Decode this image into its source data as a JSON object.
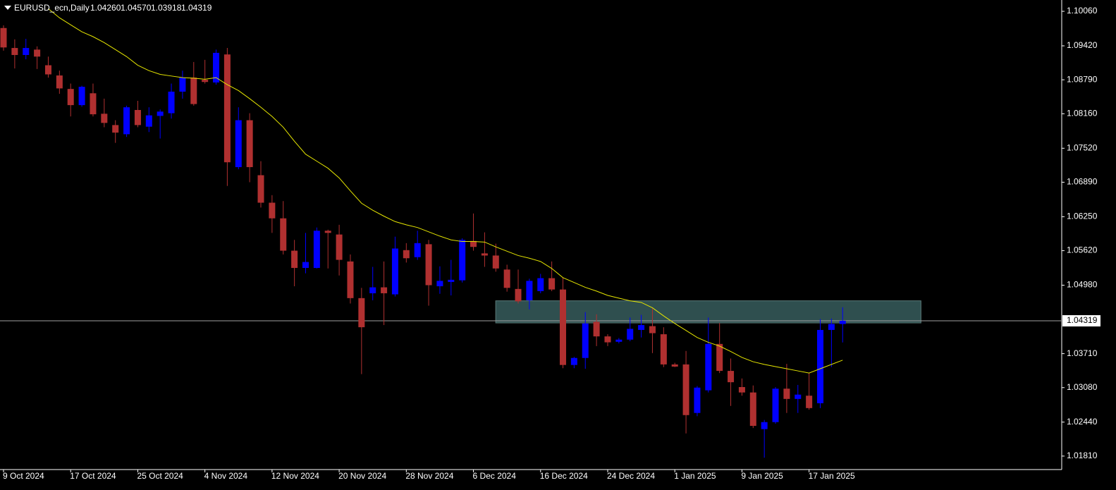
{
  "chart_data": {
    "type": "candlestick",
    "title": "EURUSD_ecn,Daily",
    "quote": [
      "1.04260",
      "1.04570",
      "1.03918",
      "1.04319"
    ],
    "categories": [
      "9 Oct 2024",
      null,
      null,
      null,
      null,
      null,
      "17 Oct 2024",
      null,
      null,
      null,
      null,
      null,
      "25 Oct 2024",
      null,
      null,
      null,
      null,
      null,
      "4 Nov 2024",
      null,
      null,
      null,
      null,
      null,
      "12 Nov 2024",
      null,
      null,
      null,
      null,
      null,
      "20 Nov 2024",
      null,
      null,
      null,
      null,
      null,
      "28 Nov 2024",
      null,
      null,
      null,
      null,
      null,
      "6 Dec 2024",
      null,
      null,
      null,
      null,
      null,
      "16 Dec 2024",
      null,
      null,
      null,
      null,
      null,
      "24 Dec 2024",
      null,
      null,
      null,
      null,
      null,
      "1 Jan 2025",
      null,
      null,
      null,
      null,
      null,
      "9 Jan 2025",
      null,
      null,
      null,
      null,
      null,
      "17 Jan 2025",
      null,
      null,
      null
    ],
    "open": [
      1.0975,
      1.0938,
      1.0925,
      1.0935,
      1.0906,
      1.0887,
      1.0862,
      1.0832,
      1.0854,
      1.0816,
      1.0795,
      1.0778,
      1.0823,
      1.0792,
      1.0812,
      1.0817,
      1.0857,
      1.0883,
      1.0879,
      1.0874,
      1.0926,
      1.0717,
      1.0804,
      1.0702,
      1.0651,
      1.0622,
      1.0562,
      1.053,
      1.053,
      1.0599,
      1.0592,
      1.0542,
      1.0474,
      1.0483,
      1.0494,
      1.0481,
      1.0563,
      1.055,
      1.0574,
      1.0496,
      1.0504,
      1.0507,
      1.058,
      1.0557,
      1.0553,
      1.0527,
      1.0491,
      1.047,
      1.0487,
      1.0511,
      1.049,
      1.035,
      1.0363,
      1.043,
      1.0403,
      1.0393,
      1.0397,
      1.0415,
      1.0422,
      1.0407,
      1.0351,
      1.0351,
      1.0261,
      1.0303,
      1.0389,
      1.0339,
      1.0309,
      1.0299,
      1.0231,
      1.0244,
      1.0306,
      1.0287,
      1.0293,
      1.0279,
      1.0415,
      1.0426
    ],
    "high": [
      1.098,
      1.0954,
      1.0955,
      1.0941,
      1.0922,
      1.0896,
      1.0872,
      1.0868,
      1.0872,
      1.0844,
      1.0804,
      1.0831,
      1.084,
      1.0828,
      1.0824,
      1.0872,
      1.0896,
      1.0912,
      1.0916,
      1.0935,
      1.0938,
      1.0828,
      1.0817,
      1.0728,
      1.0665,
      1.0654,
      1.0582,
      1.0595,
      1.0605,
      1.0601,
      1.061,
      1.0555,
      1.0493,
      1.0532,
      1.0542,
      1.0588,
      1.0576,
      1.0599,
      1.0582,
      1.0533,
      1.0545,
      1.0585,
      1.0631,
      1.0596,
      1.0575,
      1.0536,
      1.0527,
      1.051,
      1.0519,
      1.0542,
      1.0512,
      1.0365,
      1.0448,
      1.0444,
      1.0407,
      1.04,
      1.0438,
      1.0443,
      1.0455,
      1.042,
      1.0354,
      1.0376,
      1.0311,
      1.0438,
      1.0428,
      1.0362,
      1.0325,
      1.0312,
      1.0248,
      1.0309,
      1.0352,
      1.0313,
      1.0335,
      1.0435,
      1.0436,
      1.0457
    ],
    "low": [
      1.0933,
      1.09,
      1.0917,
      1.0899,
      1.0883,
      1.0853,
      1.0811,
      1.0829,
      1.0811,
      1.0791,
      1.0762,
      1.0773,
      1.0791,
      1.0782,
      1.077,
      1.0807,
      1.0844,
      1.0831,
      1.0872,
      1.087,
      1.0682,
      1.0713,
      1.0689,
      1.0642,
      1.0595,
      1.0555,
      1.0496,
      1.052,
      1.0529,
      1.0529,
      1.0516,
      1.0464,
      1.0333,
      1.047,
      1.0424,
      1.0477,
      1.054,
      1.0545,
      1.046,
      1.0482,
      1.0479,
      1.0503,
      1.0562,
      1.0532,
      1.0523,
      1.0486,
      1.0464,
      1.0453,
      1.0483,
      1.0487,
      1.0344,
      1.0344,
      1.0343,
      1.0385,
      1.0385,
      1.039,
      1.0394,
      1.0401,
      1.0372,
      1.0346,
      1.0346,
      1.0223,
      1.0255,
      1.0299,
      1.0335,
      1.0274,
      1.0293,
      1.0233,
      1.0178,
      1.0241,
      1.0261,
      1.0261,
      1.0267,
      1.027,
      1.0346,
      1.03918
    ],
    "close": [
      1.0939,
      1.0925,
      1.0938,
      1.0922,
      1.0889,
      1.0863,
      1.0832,
      1.0866,
      1.0815,
      1.0799,
      1.0781,
      1.0828,
      1.0795,
      1.0813,
      1.082,
      1.0857,
      1.0883,
      1.0834,
      1.0875,
      1.0929,
      1.0726,
      1.0804,
      1.0717,
      1.0651,
      1.0622,
      1.0562,
      1.053,
      1.0541,
      1.0599,
      1.0595,
      1.0545,
      1.0474,
      1.042,
      1.0494,
      1.0483,
      1.0566,
      1.0548,
      1.0576,
      1.0498,
      1.0506,
      1.0508,
      1.0582,
      1.0569,
      1.0553,
      1.0529,
      1.0493,
      1.0468,
      1.0506,
      1.0511,
      1.049,
      1.035,
      1.0363,
      1.0427,
      1.0403,
      1.0392,
      1.0397,
      1.0417,
      1.0424,
      1.0409,
      1.0351,
      1.0347,
      1.0257,
      1.0308,
      1.0389,
      1.0339,
      1.0318,
      1.0299,
      1.0237,
      1.0244,
      1.0306,
      1.0287,
      1.0295,
      1.027,
      1.0415,
      1.0426,
      1.04319
    ],
    "up_color": "#0000ff",
    "down_color": "#b03030",
    "ma": {
      "color": "#e6e600",
      "values": [
        null,
        null,
        null,
        null,
        1.1011,
        1.0994,
        1.0981,
        1.0968,
        1.0959,
        1.0948,
        1.0935,
        1.0922,
        1.0906,
        1.0896,
        1.0889,
        1.0886,
        1.0883,
        1.0882,
        1.088,
        1.0883,
        1.087,
        1.0859,
        1.0844,
        1.0828,
        1.0811,
        1.0791,
        1.0765,
        1.0741,
        1.0728,
        1.0715,
        1.0697,
        1.0673,
        1.065,
        1.0637,
        1.0626,
        1.0616,
        1.061,
        1.0605,
        1.0597,
        1.0589,
        1.0582,
        1.0579,
        1.0579,
        1.0578,
        1.0569,
        1.0561,
        1.0553,
        1.0548,
        1.0542,
        1.0529,
        1.0512,
        1.0503,
        1.0494,
        1.0487,
        1.0479,
        1.0474,
        1.0469,
        1.0466,
        1.0456,
        1.0441,
        1.0427,
        1.0414,
        1.0401,
        1.0392,
        1.0385,
        1.0375,
        1.0364,
        1.0356,
        1.0351,
        1.0347,
        1.0343,
        1.0339,
        1.0335,
        1.0343,
        1.0351,
        1.0359
      ]
    },
    "zone": {
      "low": 1.0428,
      "high": 1.0469,
      "color": "#2f4f4f"
    },
    "current_price": 1.04319,
    "ylim": [
      1.0156,
      1.1027
    ],
    "yticks": [
      {
        "value": 1.1006,
        "label": "1.10060"
      },
      {
        "value": 1.0942,
        "label": "1.09420"
      },
      {
        "value": 1.0879,
        "label": "1.08790"
      },
      {
        "value": 1.0816,
        "label": "1.08160"
      },
      {
        "value": 1.0752,
        "label": "1.07520"
      },
      {
        "value": 1.0689,
        "label": "1.06890"
      },
      {
        "value": 1.0625,
        "label": "1.06250"
      },
      {
        "value": 1.0562,
        "label": "1.05620"
      },
      {
        "value": 1.0498,
        "label": "1.04980"
      },
      {
        "value": 1.0371,
        "label": "1.03710"
      },
      {
        "value": 1.0308,
        "label": "1.03080"
      },
      {
        "value": 1.0244,
        "label": "1.02440"
      },
      {
        "value": 1.0181,
        "label": "1.01810"
      }
    ]
  }
}
